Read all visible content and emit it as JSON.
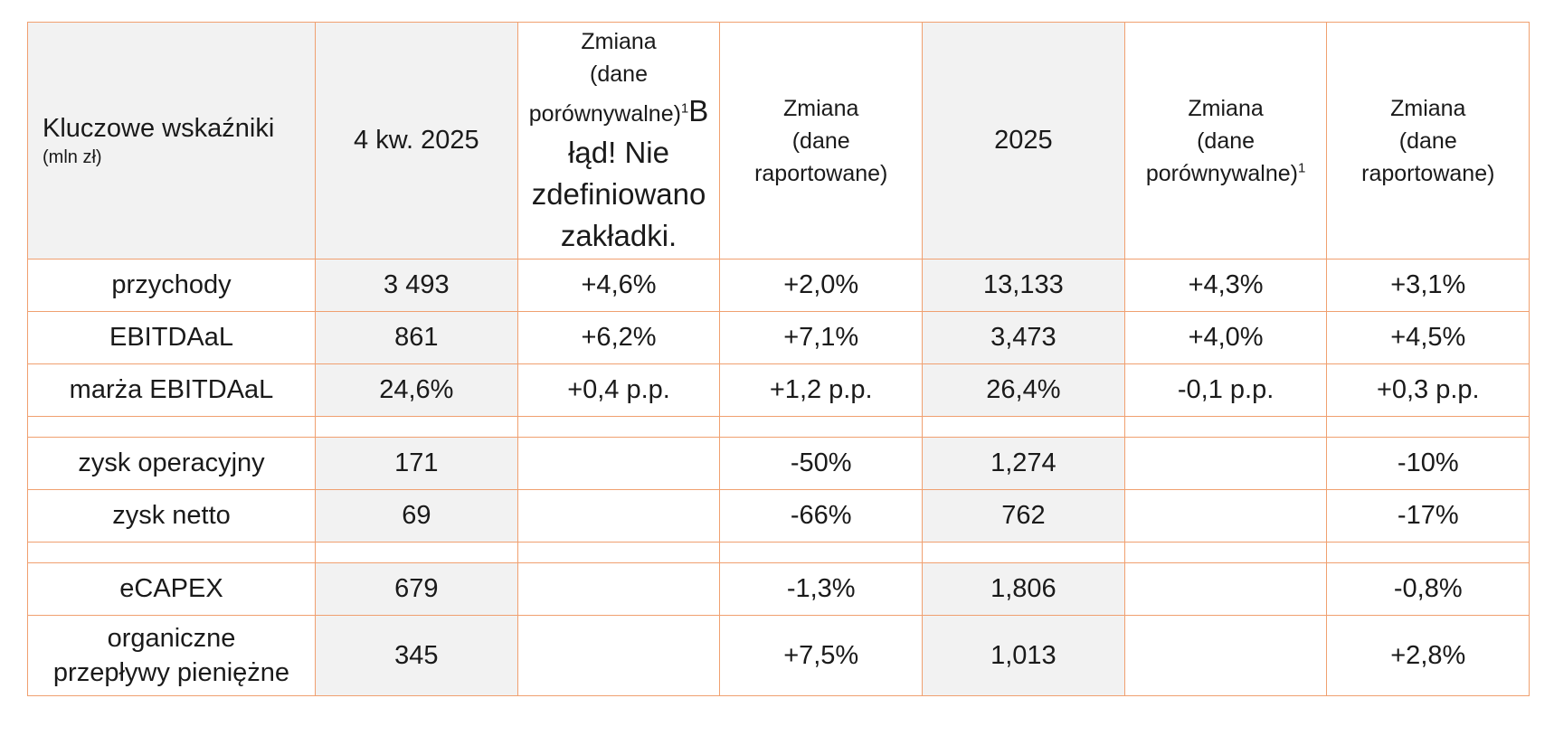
{
  "header": {
    "title": "Kluczowe wskaźniki",
    "unit": "(mln zł)",
    "q4": "4 kw. 2025",
    "chg_comp_q_line1": "Zmiana",
    "chg_comp_q_line2": "(dane",
    "chg_comp_q_line3": "porównywalne)",
    "footnote": "1",
    "error_text_1": "B",
    "error_text_2": "łąd! Nie",
    "error_text_3": "zdefiniowano",
    "error_text_4": "zakładki.",
    "chg_rep_q_line1": "Zmiana",
    "chg_rep_q_line2": "(dane",
    "chg_rep_q_line3": "raportowane)",
    "year": "2025",
    "chg_comp_y_line1": "Zmiana",
    "chg_comp_y_line2": "(dane",
    "chg_comp_y_line3": "porównywalne)",
    "chg_rep_y_line1": "Zmiana",
    "chg_rep_y_line2": "(dane",
    "chg_rep_y_line3": "raportowane)"
  },
  "rows": [
    {
      "label": "przychody",
      "q4": "3 493",
      "chg_comp_q": "+4,6%",
      "chg_rep_q": "+2,0%",
      "year": "13,133",
      "chg_comp_y": "+4,3%",
      "chg_rep_y": "+3,1%"
    },
    {
      "label": "EBITDAaL",
      "q4": "861",
      "chg_comp_q": "+6,2%",
      "chg_rep_q": "+7,1%",
      "year": "3,473",
      "chg_comp_y": "+4,0%",
      "chg_rep_y": "+4,5%"
    },
    {
      "label": "marża EBITDAaL",
      "q4": "24,6%",
      "chg_comp_q": "+0,4 p.p.",
      "chg_rep_q": "+1,2 p.p.",
      "year": "26,4%",
      "chg_comp_y": "-0,1 p.p.",
      "chg_rep_y": "+0,3 p.p."
    },
    {
      "label": "zysk operacyjny",
      "q4": "171",
      "chg_comp_q": "",
      "chg_rep_q": "-50%",
      "year": "1,274",
      "chg_comp_y": "",
      "chg_rep_y": "-10%"
    },
    {
      "label": "zysk netto",
      "q4": "69",
      "chg_comp_q": "",
      "chg_rep_q": "-66%",
      "year": "762",
      "chg_comp_y": "",
      "chg_rep_y": "-17%"
    },
    {
      "label": "eCAPEX",
      "q4": "679",
      "chg_comp_q": "",
      "chg_rep_q": "-1,3%",
      "year": "1,806",
      "chg_comp_y": "",
      "chg_rep_y": "-0,8%"
    },
    {
      "label_line1": "organiczne",
      "label_line2": "przepływy pieniężne",
      "q4": "345",
      "chg_comp_q": "",
      "chg_rep_q": "+7,5%",
      "year": "1,013",
      "chg_comp_y": "",
      "chg_rep_y": "+2,8%"
    }
  ],
  "colors": {
    "border": "#f0a070",
    "shaded": "#f2f2f2"
  }
}
